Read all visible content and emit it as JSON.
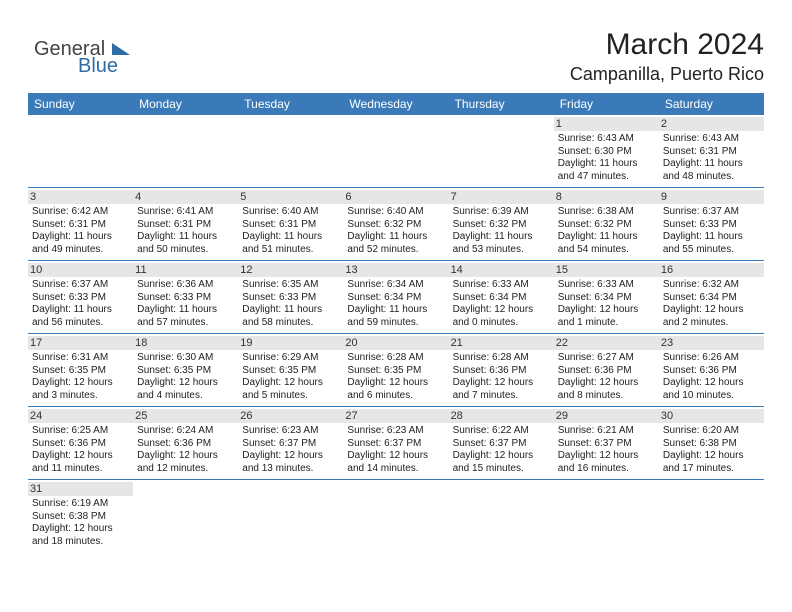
{
  "logo": {
    "general": "General",
    "blue": "Blue"
  },
  "title": "March 2024",
  "location": "Campanilla, Puerto Rico",
  "colors": {
    "header_bg": "#3a7ab8",
    "header_text": "#ffffff",
    "daynum_bg": "#e6e6e6",
    "row_border": "#3a7ab8",
    "logo_blue": "#2e6ca4",
    "text": "#222222"
  },
  "typography": {
    "title_fontsize": 30,
    "location_fontsize": 18,
    "dayheader_fontsize": 12,
    "daynum_fontsize": 11,
    "cell_fontsize": 10
  },
  "day_headers": [
    "Sunday",
    "Monday",
    "Tuesday",
    "Wednesday",
    "Thursday",
    "Friday",
    "Saturday"
  ],
  "weeks": [
    [
      null,
      null,
      null,
      null,
      null,
      {
        "num": "1",
        "sunrise": "Sunrise: 6:43 AM",
        "sunset": "Sunset: 6:30 PM",
        "daylight": "Daylight: 11 hours and 47 minutes."
      },
      {
        "num": "2",
        "sunrise": "Sunrise: 6:43 AM",
        "sunset": "Sunset: 6:31 PM",
        "daylight": "Daylight: 11 hours and 48 minutes."
      }
    ],
    [
      {
        "num": "3",
        "sunrise": "Sunrise: 6:42 AM",
        "sunset": "Sunset: 6:31 PM",
        "daylight": "Daylight: 11 hours and 49 minutes."
      },
      {
        "num": "4",
        "sunrise": "Sunrise: 6:41 AM",
        "sunset": "Sunset: 6:31 PM",
        "daylight": "Daylight: 11 hours and 50 minutes."
      },
      {
        "num": "5",
        "sunrise": "Sunrise: 6:40 AM",
        "sunset": "Sunset: 6:31 PM",
        "daylight": "Daylight: 11 hours and 51 minutes."
      },
      {
        "num": "6",
        "sunrise": "Sunrise: 6:40 AM",
        "sunset": "Sunset: 6:32 PM",
        "daylight": "Daylight: 11 hours and 52 minutes."
      },
      {
        "num": "7",
        "sunrise": "Sunrise: 6:39 AM",
        "sunset": "Sunset: 6:32 PM",
        "daylight": "Daylight: 11 hours and 53 minutes."
      },
      {
        "num": "8",
        "sunrise": "Sunrise: 6:38 AM",
        "sunset": "Sunset: 6:32 PM",
        "daylight": "Daylight: 11 hours and 54 minutes."
      },
      {
        "num": "9",
        "sunrise": "Sunrise: 6:37 AM",
        "sunset": "Sunset: 6:33 PM",
        "daylight": "Daylight: 11 hours and 55 minutes."
      }
    ],
    [
      {
        "num": "10",
        "sunrise": "Sunrise: 6:37 AM",
        "sunset": "Sunset: 6:33 PM",
        "daylight": "Daylight: 11 hours and 56 minutes."
      },
      {
        "num": "11",
        "sunrise": "Sunrise: 6:36 AM",
        "sunset": "Sunset: 6:33 PM",
        "daylight": "Daylight: 11 hours and 57 minutes."
      },
      {
        "num": "12",
        "sunrise": "Sunrise: 6:35 AM",
        "sunset": "Sunset: 6:33 PM",
        "daylight": "Daylight: 11 hours and 58 minutes."
      },
      {
        "num": "13",
        "sunrise": "Sunrise: 6:34 AM",
        "sunset": "Sunset: 6:34 PM",
        "daylight": "Daylight: 11 hours and 59 minutes."
      },
      {
        "num": "14",
        "sunrise": "Sunrise: 6:33 AM",
        "sunset": "Sunset: 6:34 PM",
        "daylight": "Daylight: 12 hours and 0 minutes."
      },
      {
        "num": "15",
        "sunrise": "Sunrise: 6:33 AM",
        "sunset": "Sunset: 6:34 PM",
        "daylight": "Daylight: 12 hours and 1 minute."
      },
      {
        "num": "16",
        "sunrise": "Sunrise: 6:32 AM",
        "sunset": "Sunset: 6:34 PM",
        "daylight": "Daylight: 12 hours and 2 minutes."
      }
    ],
    [
      {
        "num": "17",
        "sunrise": "Sunrise: 6:31 AM",
        "sunset": "Sunset: 6:35 PM",
        "daylight": "Daylight: 12 hours and 3 minutes."
      },
      {
        "num": "18",
        "sunrise": "Sunrise: 6:30 AM",
        "sunset": "Sunset: 6:35 PM",
        "daylight": "Daylight: 12 hours and 4 minutes."
      },
      {
        "num": "19",
        "sunrise": "Sunrise: 6:29 AM",
        "sunset": "Sunset: 6:35 PM",
        "daylight": "Daylight: 12 hours and 5 minutes."
      },
      {
        "num": "20",
        "sunrise": "Sunrise: 6:28 AM",
        "sunset": "Sunset: 6:35 PM",
        "daylight": "Daylight: 12 hours and 6 minutes."
      },
      {
        "num": "21",
        "sunrise": "Sunrise: 6:28 AM",
        "sunset": "Sunset: 6:36 PM",
        "daylight": "Daylight: 12 hours and 7 minutes."
      },
      {
        "num": "22",
        "sunrise": "Sunrise: 6:27 AM",
        "sunset": "Sunset: 6:36 PM",
        "daylight": "Daylight: 12 hours and 8 minutes."
      },
      {
        "num": "23",
        "sunrise": "Sunrise: 6:26 AM",
        "sunset": "Sunset: 6:36 PM",
        "daylight": "Daylight: 12 hours and 10 minutes."
      }
    ],
    [
      {
        "num": "24",
        "sunrise": "Sunrise: 6:25 AM",
        "sunset": "Sunset: 6:36 PM",
        "daylight": "Daylight: 12 hours and 11 minutes."
      },
      {
        "num": "25",
        "sunrise": "Sunrise: 6:24 AM",
        "sunset": "Sunset: 6:36 PM",
        "daylight": "Daylight: 12 hours and 12 minutes."
      },
      {
        "num": "26",
        "sunrise": "Sunrise: 6:23 AM",
        "sunset": "Sunset: 6:37 PM",
        "daylight": "Daylight: 12 hours and 13 minutes."
      },
      {
        "num": "27",
        "sunrise": "Sunrise: 6:23 AM",
        "sunset": "Sunset: 6:37 PM",
        "daylight": "Daylight: 12 hours and 14 minutes."
      },
      {
        "num": "28",
        "sunrise": "Sunrise: 6:22 AM",
        "sunset": "Sunset: 6:37 PM",
        "daylight": "Daylight: 12 hours and 15 minutes."
      },
      {
        "num": "29",
        "sunrise": "Sunrise: 6:21 AM",
        "sunset": "Sunset: 6:37 PM",
        "daylight": "Daylight: 12 hours and 16 minutes."
      },
      {
        "num": "30",
        "sunrise": "Sunrise: 6:20 AM",
        "sunset": "Sunset: 6:38 PM",
        "daylight": "Daylight: 12 hours and 17 minutes."
      }
    ],
    [
      {
        "num": "31",
        "sunrise": "Sunrise: 6:19 AM",
        "sunset": "Sunset: 6:38 PM",
        "daylight": "Daylight: 12 hours and 18 minutes."
      },
      null,
      null,
      null,
      null,
      null,
      null
    ]
  ]
}
